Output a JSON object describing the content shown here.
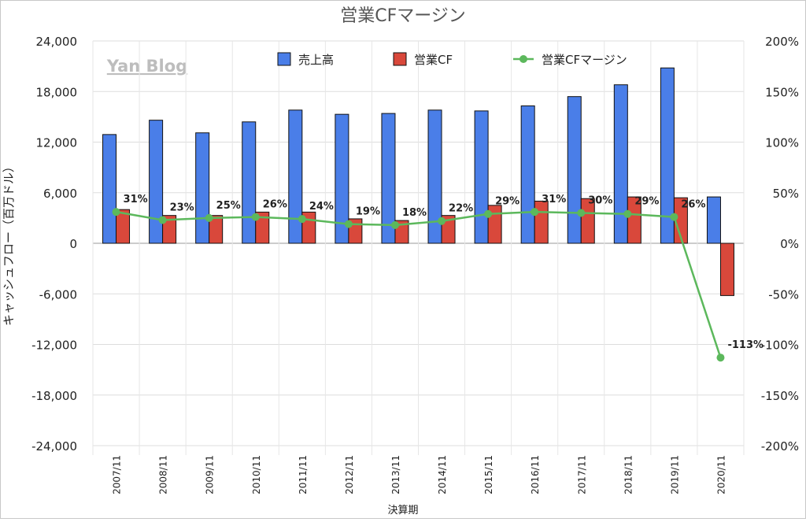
{
  "watermark": "Yan Blog",
  "chart_data": {
    "type": "bar",
    "title": "営業CFマージン",
    "xlabel": "決算期",
    "ylabel": "キャッシュフロー（百万ドル）",
    "categories": [
      "2007/11",
      "2008/11",
      "2009/11",
      "2010/11",
      "2011/11",
      "2012/11",
      "2013/11",
      "2014/11",
      "2015/11",
      "2016/11",
      "2017/11",
      "2018/11",
      "2019/11",
      "2020/11"
    ],
    "series": [
      {
        "name": "売上高",
        "kind": "bar",
        "axis": "left",
        "color": "#4a7ee8",
        "values": [
          12900,
          14600,
          13100,
          14400,
          15800,
          15300,
          15400,
          15800,
          15700,
          16300,
          17400,
          18800,
          20800,
          5500
        ]
      },
      {
        "name": "営業CF",
        "kind": "bar",
        "axis": "left",
        "color": "#d9483b",
        "values": [
          4000,
          3300,
          3300,
          3700,
          3700,
          2900,
          2700,
          3300,
          4500,
          5000,
          5300,
          5500,
          5400,
          -6200
        ]
      },
      {
        "name": "営業CFマージン",
        "kind": "line",
        "axis": "right",
        "color": "#5cb85c",
        "values": [
          31,
          23,
          25,
          26,
          24,
          19,
          18,
          22,
          29,
          31,
          30,
          29,
          26,
          -113
        ],
        "labels": [
          "31%",
          "23%",
          "25%",
          "26%",
          "24%",
          "19%",
          "18%",
          "22%",
          "29%",
          "31%",
          "30%",
          "29%",
          "26%",
          "-113%"
        ]
      }
    ],
    "left_axis": {
      "min": -24000,
      "max": 24000,
      "ticks": [
        "24,000",
        "18,000",
        "12,000",
        "6,000",
        "0",
        "-6,000",
        "-12,000",
        "-18,000",
        "-24,000"
      ]
    },
    "right_axis": {
      "min": -200,
      "max": 200,
      "ticks": [
        "200%",
        "150%",
        "100%",
        "50%",
        "0%",
        "-50%",
        "-100%",
        "-150%",
        "-200%"
      ]
    },
    "grid": "horizontal",
    "legend": "top"
  }
}
